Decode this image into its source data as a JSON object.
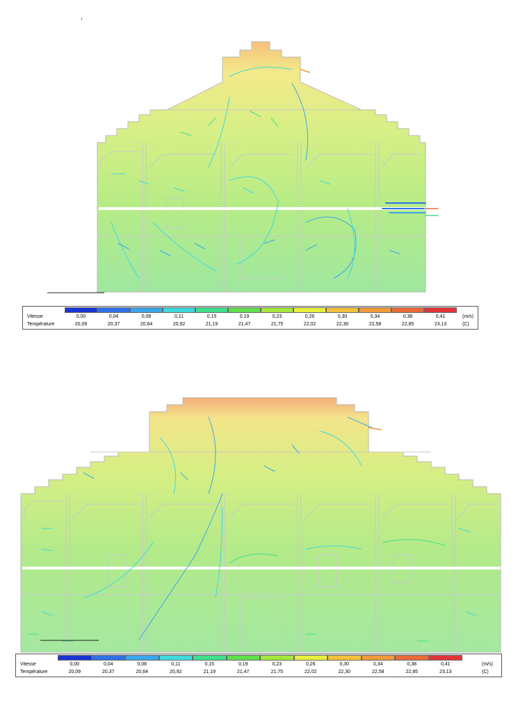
{
  "legend": {
    "speed_label": "Vitesse",
    "temp_label": "Température",
    "speed_unit": "(m/s)",
    "temp_unit": "(C)",
    "speed_values": [
      "0,00",
      "0,04",
      "0,08",
      "0,11",
      "0,15",
      "0,19",
      "0,23",
      "0,26",
      "0,30",
      "0,34",
      "0,38",
      "0,41"
    ],
    "temp_values": [
      "20,09",
      "20,37",
      "20,64",
      "20,92",
      "21,19",
      "21,47",
      "21,75",
      "22,02",
      "22,30",
      "22,58",
      "22,85",
      "23,13"
    ],
    "colors": [
      "#1a33d6",
      "#2f72e8",
      "#3aa6ec",
      "#3fd9e0",
      "#3fe08a",
      "#5fe04a",
      "#a6e83a",
      "#e8f03a",
      "#f4c23a",
      "#f09a3a",
      "#ea6a3a",
      "#e2333a"
    ]
  }
}
